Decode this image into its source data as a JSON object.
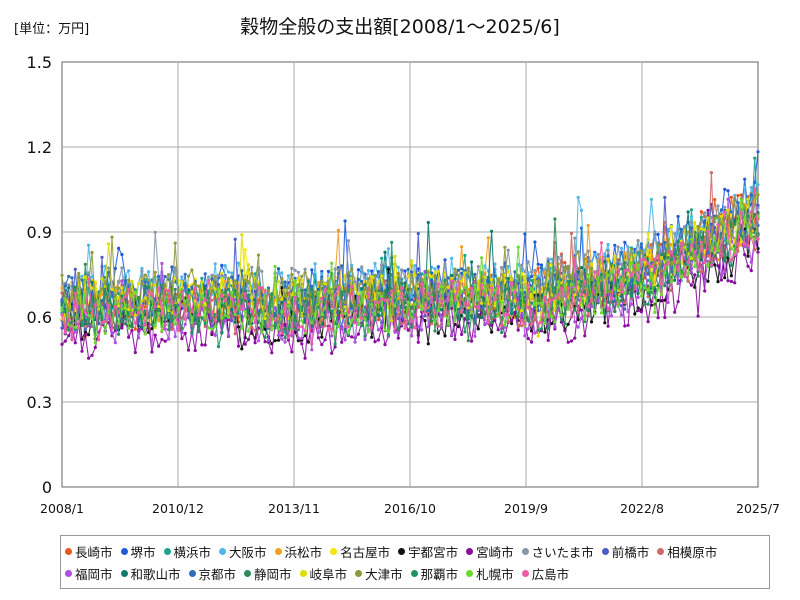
{
  "header": {
    "unit": "[単位：万円]",
    "title": "穀物全般の支出額[2008/1～2025/6]"
  },
  "chart_data": {
    "type": "line",
    "title": "穀物全般の支出額[2008/1～2025/6]",
    "unit": "[単位：万円]",
    "xlabel": "",
    "ylabel": "",
    "x_range": [
      "2008/1",
      "2025/7"
    ],
    "x_ticks": [
      "2008/1",
      "2010/12",
      "2013/11",
      "2016/10",
      "2019/9",
      "2022/8",
      "2025/7"
    ],
    "ylim": [
      0,
      1.5
    ],
    "y_ticks": [
      "0",
      "0.3",
      "0.6",
      "0.9",
      "1.2",
      "1.5"
    ],
    "grid": true,
    "legend_position": "bottom",
    "series": [
      {
        "name": "長崎市",
        "color": "#e8581c",
        "values": [
          0.62,
          0.64,
          0.63,
          0.65,
          0.66,
          0.64,
          0.64,
          0.65,
          0.66,
          0.67,
          0.68,
          0.7,
          0.74,
          0.78,
          0.83,
          0.92,
          1.0
        ]
      },
      {
        "name": "堺市",
        "color": "#1f5bd9",
        "values": [
          0.68,
          0.7,
          0.69,
          0.7,
          0.71,
          0.69,
          0.7,
          0.7,
          0.71,
          0.72,
          0.71,
          0.72,
          0.75,
          0.8,
          0.86,
          0.95,
          1.05
        ]
      },
      {
        "name": "横浜市",
        "color": "#1aa58c",
        "values": [
          0.66,
          0.67,
          0.66,
          0.67,
          0.68,
          0.67,
          0.67,
          0.68,
          0.68,
          0.69,
          0.68,
          0.69,
          0.72,
          0.76,
          0.81,
          0.89,
          0.96
        ]
      },
      {
        "name": "大阪市",
        "color": "#4db8e8",
        "values": [
          0.7,
          0.71,
          0.7,
          0.71,
          0.72,
          0.7,
          0.71,
          0.71,
          0.72,
          0.73,
          0.72,
          0.73,
          0.76,
          0.8,
          0.85,
          0.93,
          1.0
        ]
      },
      {
        "name": "浜松市",
        "color": "#f0a020",
        "values": [
          0.64,
          0.66,
          0.65,
          0.66,
          0.67,
          0.65,
          0.66,
          0.67,
          0.67,
          0.68,
          0.67,
          0.68,
          0.71,
          0.75,
          0.8,
          0.88,
          0.95
        ]
      },
      {
        "name": "名古屋市",
        "color": "#f4e600",
        "values": [
          0.65,
          0.67,
          0.66,
          0.67,
          0.68,
          0.66,
          0.67,
          0.67,
          0.68,
          0.69,
          0.68,
          0.69,
          0.72,
          0.76,
          0.81,
          0.89,
          0.96
        ]
      },
      {
        "name": "宇都宮市",
        "color": "#111111",
        "values": [
          0.58,
          0.6,
          0.59,
          0.6,
          0.61,
          0.58,
          0.59,
          0.6,
          0.6,
          0.61,
          0.6,
          0.61,
          0.64,
          0.68,
          0.73,
          0.8,
          0.86
        ]
      },
      {
        "name": "宮崎市",
        "color": "#8a0d9e",
        "values": [
          0.52,
          0.54,
          0.53,
          0.54,
          0.55,
          0.53,
          0.54,
          0.55,
          0.55,
          0.56,
          0.56,
          0.57,
          0.6,
          0.64,
          0.69,
          0.76,
          0.84
        ]
      },
      {
        "name": "さいたま市",
        "color": "#8a96a8",
        "values": [
          0.69,
          0.7,
          0.69,
          0.7,
          0.71,
          0.69,
          0.7,
          0.7,
          0.71,
          0.72,
          0.71,
          0.72,
          0.75,
          0.79,
          0.84,
          0.92,
          0.98
        ]
      },
      {
        "name": "前橋市",
        "color": "#4a5cc8",
        "values": [
          0.63,
          0.64,
          0.63,
          0.64,
          0.65,
          0.63,
          0.64,
          0.64,
          0.65,
          0.66,
          0.65,
          0.66,
          0.69,
          0.73,
          0.78,
          0.86,
          0.93
        ]
      },
      {
        "name": "相模原市",
        "color": "#d06a68",
        "values": [
          0.62,
          0.63,
          0.62,
          0.63,
          0.64,
          0.62,
          0.63,
          0.64,
          0.64,
          0.65,
          0.64,
          0.65,
          0.68,
          0.72,
          0.77,
          0.85,
          0.92
        ]
      },
      {
        "name": "福岡市",
        "color": "#b04ee0",
        "values": [
          0.57,
          0.59,
          0.58,
          0.59,
          0.6,
          0.58,
          0.59,
          0.59,
          0.6,
          0.61,
          0.6,
          0.61,
          0.64,
          0.68,
          0.73,
          0.81,
          0.88
        ]
      },
      {
        "name": "和歌山市",
        "color": "#0d7a6a",
        "values": [
          0.64,
          0.65,
          0.64,
          0.65,
          0.66,
          0.64,
          0.65,
          0.65,
          0.66,
          0.67,
          0.66,
          0.67,
          0.7,
          0.74,
          0.79,
          0.87,
          0.94
        ]
      },
      {
        "name": "京都市",
        "color": "#2f6fba",
        "values": [
          0.67,
          0.68,
          0.67,
          0.68,
          0.69,
          0.67,
          0.68,
          0.68,
          0.69,
          0.7,
          0.69,
          0.7,
          0.73,
          0.77,
          0.82,
          0.9,
          0.97
        ]
      },
      {
        "name": "静岡市",
        "color": "#2e8b57",
        "values": [
          0.63,
          0.64,
          0.63,
          0.64,
          0.65,
          0.63,
          0.64,
          0.64,
          0.65,
          0.66,
          0.65,
          0.66,
          0.69,
          0.73,
          0.78,
          0.86,
          0.93
        ]
      },
      {
        "name": "岐阜市",
        "color": "#dede00",
        "values": [
          0.66,
          0.67,
          0.66,
          0.67,
          0.68,
          0.66,
          0.67,
          0.67,
          0.68,
          0.69,
          0.68,
          0.69,
          0.72,
          0.76,
          0.81,
          0.89,
          0.96
        ]
      },
      {
        "name": "大津市",
        "color": "#8f9a3c",
        "values": [
          0.68,
          0.69,
          0.68,
          0.69,
          0.7,
          0.68,
          0.69,
          0.69,
          0.7,
          0.71,
          0.7,
          0.71,
          0.74,
          0.78,
          0.83,
          0.91,
          0.98
        ]
      },
      {
        "name": "那覇市",
        "color": "#239160",
        "values": [
          0.6,
          0.61,
          0.6,
          0.61,
          0.62,
          0.6,
          0.61,
          0.61,
          0.62,
          0.63,
          0.62,
          0.63,
          0.66,
          0.7,
          0.75,
          0.83,
          0.9
        ]
      },
      {
        "name": "札幌市",
        "color": "#6cd832",
        "values": [
          0.61,
          0.62,
          0.61,
          0.62,
          0.63,
          0.61,
          0.62,
          0.62,
          0.63,
          0.64,
          0.63,
          0.64,
          0.67,
          0.71,
          0.76,
          0.84,
          0.91
        ]
      },
      {
        "name": "広島市",
        "color": "#ee5ba6",
        "values": [
          0.62,
          0.63,
          0.62,
          0.63,
          0.64,
          0.62,
          0.63,
          0.63,
          0.64,
          0.65,
          0.64,
          0.65,
          0.68,
          0.72,
          0.77,
          0.85,
          0.92
        ]
      }
    ]
  }
}
